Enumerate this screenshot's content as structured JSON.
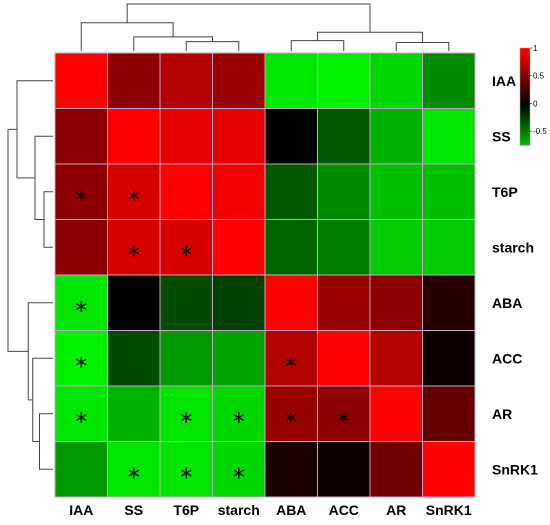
{
  "chart_data": {
    "type": "heatmap",
    "title": "",
    "rows": [
      "IAA",
      "SS",
      "T6P",
      "starch",
      "ABA",
      "ACC",
      "AR",
      "SnRK1"
    ],
    "columns": [
      "IAA",
      "SS",
      "T6P",
      "starch",
      "ABA",
      "ACC",
      "AR",
      "SnRK1"
    ],
    "values": [
      [
        1.0,
        0.55,
        0.7,
        0.6,
        -0.9,
        -0.95,
        -0.85,
        -0.55
      ],
      [
        0.55,
        1.0,
        0.9,
        0.9,
        0.0,
        -0.35,
        -0.7,
        -0.9
      ],
      [
        0.55,
        0.85,
        1.0,
        0.95,
        -0.35,
        -0.55,
        -0.75,
        -0.75
      ],
      [
        0.55,
        0.85,
        0.85,
        1.0,
        -0.4,
        -0.5,
        -0.8,
        -0.8
      ],
      [
        -0.9,
        0.0,
        -0.3,
        -0.25,
        1.0,
        0.6,
        0.55,
        0.15
      ],
      [
        -0.95,
        -0.3,
        -0.6,
        -0.65,
        0.7,
        1.0,
        0.7,
        0.05
      ],
      [
        -0.9,
        -0.7,
        -0.9,
        -0.85,
        0.6,
        0.55,
        1.0,
        0.4
      ],
      [
        -0.6,
        -0.9,
        -0.9,
        -0.85,
        0.1,
        0.05,
        0.45,
        1.0
      ]
    ],
    "significance": [
      [
        0,
        0,
        0,
        0,
        0,
        0,
        0,
        0
      ],
      [
        0,
        0,
        0,
        0,
        0,
        0,
        0,
        0
      ],
      [
        1,
        1,
        0,
        0,
        0,
        0,
        0,
        0
      ],
      [
        0,
        1,
        1,
        0,
        0,
        0,
        0,
        0
      ],
      [
        1,
        0,
        0,
        0,
        0,
        0,
        0,
        0
      ],
      [
        1,
        0,
        0,
        0,
        1,
        0,
        0,
        0
      ],
      [
        1,
        0,
        1,
        1,
        1,
        1,
        0,
        0
      ],
      [
        0,
        1,
        1,
        1,
        0,
        0,
        0,
        0
      ]
    ],
    "significance_marker": "*",
    "color_scale": {
      "min": -1,
      "max": 1,
      "low": "#00ff00",
      "mid": "#000000",
      "high": "#ff0000"
    },
    "colorbar_ticks": [
      "1",
      "0.5",
      "0",
      "-0.5"
    ],
    "colorbar_tick_values": [
      1,
      0.5,
      0,
      -0.5
    ],
    "colorbar_range": [
      -0.75,
      1
    ],
    "legend_position": "top-right",
    "grid": true,
    "grid_color": "#c8a8c8",
    "row_dendrogram": {
      "merges": [
        [
          2,
          3,
          0.2
        ],
        [
          1,
          8,
          0.4
        ],
        [
          0,
          9,
          0.8
        ],
        [
          6,
          7,
          0.3
        ],
        [
          5,
          11,
          0.45
        ],
        [
          4,
          12,
          0.55
        ],
        [
          10,
          13,
          1.0
        ]
      ]
    },
    "column_dendrogram": {
      "merges": [
        [
          2,
          3,
          0.2
        ],
        [
          1,
          8,
          0.3
        ],
        [
          0,
          9,
          0.6
        ],
        [
          4,
          5,
          0.22
        ],
        [
          6,
          7,
          0.18
        ],
        [
          11,
          12,
          0.4
        ],
        [
          10,
          13,
          1.0
        ]
      ]
    }
  }
}
